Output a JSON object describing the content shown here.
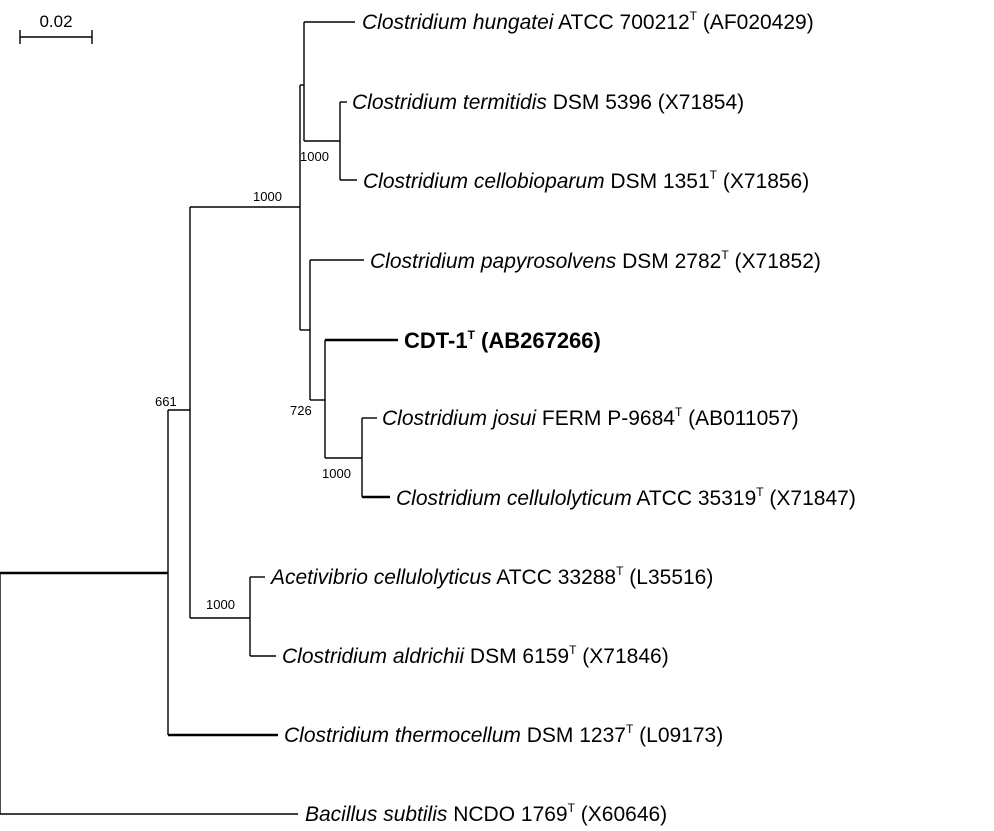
{
  "scale_bar": {
    "label": "0.02"
  },
  "leaves": [
    {
      "id": "hungatei",
      "genus_species": "Clostridium hungatei",
      "strain": " ATCC 700212",
      "type": "T",
      "accession": " (AF020429)",
      "bold": false
    },
    {
      "id": "termitidis",
      "genus_species": "Clostridium termitidis",
      "strain": " DSM 5396 (X71854)",
      "type": "",
      "accession": "",
      "bold": false
    },
    {
      "id": "cellobioparum",
      "genus_species": "Clostridium cellobioparum",
      "strain": " DSM 1351",
      "type": "T",
      "accession": " (X71856)",
      "bold": false
    },
    {
      "id": "papyrosolvens",
      "genus_species": "Clostridium papyrosolvens",
      "strain": " DSM 2782",
      "type": "T",
      "accession": " (X71852)",
      "bold": false
    },
    {
      "id": "cdt1",
      "genus_species": "",
      "strain": "CDT-1",
      "type": "T",
      "accession": " (AB267266)",
      "bold": true
    },
    {
      "id": "josui",
      "genus_species": "Clostridium josui",
      "strain": " FERM P-9684",
      "type": "T",
      "accession": " (AB011057)",
      "bold": false
    },
    {
      "id": "cellulolyticum",
      "genus_species": "Clostridium cellulolyticum",
      "strain": " ATCC 35319",
      "type": "T",
      "accession": " (X71847)",
      "bold": false
    },
    {
      "id": "acetivibrio",
      "genus_species": "Acetivibrio cellulolyticus",
      "strain": " ATCC 33288",
      "type": "T",
      "accession": " (L35516)",
      "bold": false
    },
    {
      "id": "aldrichii",
      "genus_species": "Clostridium aldrichii",
      "strain": " DSM 6159",
      "type": "T",
      "accession": " (X71846)",
      "bold": false
    },
    {
      "id": "thermocellum",
      "genus_species": "Clostridium thermocellum",
      "strain": " DSM 1237",
      "type": "T",
      "accession": " (L09173)",
      "bold": false
    },
    {
      "id": "subtilis",
      "genus_species": "Bacillus subtilis",
      "strain": " NCDO 1769",
      "type": "T",
      "accession": " (X60646)",
      "bold": false
    }
  ],
  "bootstrap": [
    {
      "id": "b1000_top",
      "value": "1000"
    },
    {
      "id": "b1000_termit",
      "value": "1000"
    },
    {
      "id": "b726",
      "value": "726"
    },
    {
      "id": "b1000_josui",
      "value": "1000"
    },
    {
      "id": "b661",
      "value": "661"
    },
    {
      "id": "b1000_aceti",
      "value": "1000"
    }
  ]
}
